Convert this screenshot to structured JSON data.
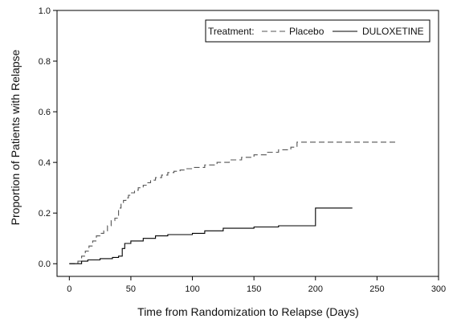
{
  "chart_data": {
    "type": "line",
    "step": true,
    "xlabel": "Time from Randomization to Relapse (Days)",
    "ylabel": "Proportion of Patients with Relapse",
    "xlim": [
      -10,
      300
    ],
    "ylim": [
      -0.05,
      1.0
    ],
    "xticks": [
      0,
      50,
      100,
      150,
      200,
      250,
      300
    ],
    "yticks": [
      0.0,
      0.2,
      0.4,
      0.6,
      0.8,
      1.0
    ],
    "ytick_labels": [
      "0.0",
      "0.2",
      "0.4",
      "0.6",
      "0.8",
      "1.0"
    ],
    "grid": false,
    "legend": {
      "placement": "top-right",
      "title": "Treatment:",
      "entries": [
        "Placebo",
        "DULOXETINE"
      ]
    },
    "series": [
      {
        "name": "Placebo",
        "style": "dashed",
        "color": "#555555",
        "x": [
          0,
          7,
          10,
          13,
          16,
          19,
          22,
          25,
          28,
          31,
          34,
          37,
          40,
          42,
          44,
          46,
          48,
          50,
          53,
          56,
          60,
          63,
          66,
          70,
          75,
          80,
          85,
          90,
          95,
          100,
          110,
          120,
          130,
          140,
          150,
          160,
          170,
          180,
          185,
          265
        ],
        "y": [
          0.0,
          0.01,
          0.03,
          0.05,
          0.07,
          0.09,
          0.11,
          0.12,
          0.13,
          0.15,
          0.17,
          0.18,
          0.22,
          0.24,
          0.25,
          0.26,
          0.27,
          0.28,
          0.29,
          0.3,
          0.31,
          0.32,
          0.33,
          0.34,
          0.35,
          0.36,
          0.365,
          0.37,
          0.375,
          0.38,
          0.39,
          0.4,
          0.41,
          0.42,
          0.43,
          0.44,
          0.45,
          0.46,
          0.48,
          0.48
        ]
      },
      {
        "name": "DULOXETINE",
        "style": "solid",
        "color": "#000000",
        "x": [
          0,
          10,
          15,
          25,
          35,
          40,
          43,
          45,
          50,
          60,
          70,
          80,
          100,
          110,
          125,
          150,
          170,
          200,
          230
        ],
        "y": [
          0.0,
          0.01,
          0.015,
          0.02,
          0.025,
          0.03,
          0.06,
          0.08,
          0.09,
          0.1,
          0.11,
          0.115,
          0.12,
          0.13,
          0.14,
          0.145,
          0.15,
          0.22,
          0.22
        ]
      }
    ]
  }
}
